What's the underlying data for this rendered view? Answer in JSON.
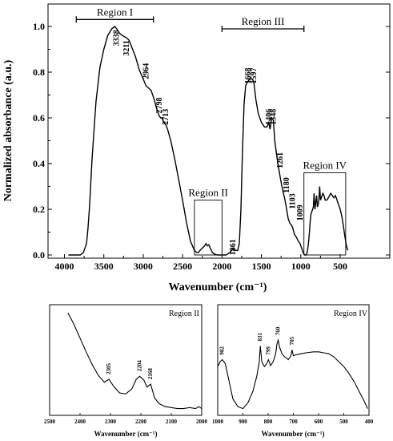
{
  "chart_data": [
    {
      "type": "line",
      "xlabel": "Wavenumber (cm⁻¹)",
      "ylabel": "Normalized absorbance (a.u.)",
      "xlim": [
        4000,
        400
      ],
      "ylim": [
        -0.02,
        1.05
      ],
      "x_reversed": true,
      "x_ticks": [
        4000,
        3500,
        3000,
        2500,
        2000,
        1500,
        1000,
        500
      ],
      "y_ticks": [
        0.0,
        0.2,
        0.4,
        0.6,
        0.8,
        1.0
      ],
      "grid": false,
      "series": [
        {
          "x": [
            3950,
            3850,
            3800,
            3760,
            3720,
            3700,
            3680,
            3650,
            3600,
            3550,
            3500,
            3450,
            3400,
            3360,
            3338,
            3300,
            3260,
            3211,
            3180,
            3100,
            3050,
            3000,
            2964,
            2930,
            2900,
            2860,
            2830,
            2798,
            2780,
            2760,
            2740,
            2713,
            2690,
            2650,
            2600,
            2550,
            2500,
            2450,
            2400,
            2350,
            2320,
            2300,
            2280,
            2250,
            2220,
            2204,
            2185,
            2168,
            2150,
            2120,
            2100,
            2060,
            2000,
            1950,
            1900,
            1880,
            1861,
            1840,
            1800,
            1780,
            1760,
            1740,
            1720,
            1700,
            1690,
            1668,
            1650,
            1620,
            1597,
            1570,
            1540,
            1500,
            1460,
            1430,
            1406,
            1390,
            1370,
            1348,
            1330,
            1300,
            1280,
            1261,
            1240,
            1220,
            1200,
            1180,
            1160,
            1140,
            1120,
            1103,
            1080,
            1060,
            1030,
            1009,
            990,
            970,
            960,
            950,
            940,
            930,
            920,
            910,
            900,
            890,
            880,
            870,
            860,
            850,
            840,
            831,
            820,
            810,
            799,
            790,
            780,
            770,
            760,
            750,
            740,
            720,
            705,
            690,
            670,
            650,
            620,
            600,
            580,
            560,
            540,
            520,
            500,
            480,
            460,
            440,
            420,
            405
          ],
          "y": [
            0.0,
            0.0,
            0.0,
            0.01,
            0.05,
            0.12,
            0.22,
            0.42,
            0.67,
            0.82,
            0.9,
            0.96,
            0.99,
            1.0,
            0.99,
            0.97,
            0.96,
            0.95,
            0.94,
            0.87,
            0.81,
            0.77,
            0.74,
            0.73,
            0.72,
            0.68,
            0.64,
            0.61,
            0.6,
            0.6,
            0.58,
            0.57,
            0.55,
            0.5,
            0.42,
            0.33,
            0.24,
            0.14,
            0.06,
            0.02,
            0.01,
            0.01,
            0.02,
            0.03,
            0.04,
            0.05,
            0.04,
            0.045,
            0.03,
            0.01,
            0.005,
            0.0,
            0.0,
            0.0,
            0.01,
            0.02,
            0.03,
            0.02,
            0.02,
            0.05,
            0.2,
            0.45,
            0.66,
            0.74,
            0.75,
            0.76,
            0.77,
            0.77,
            0.76,
            0.68,
            0.62,
            0.58,
            0.56,
            0.56,
            0.58,
            0.55,
            0.6,
            0.59,
            0.5,
            0.42,
            0.38,
            0.34,
            0.3,
            0.27,
            0.24,
            0.2,
            0.16,
            0.14,
            0.13,
            0.12,
            0.09,
            0.08,
            0.06,
            0.05,
            0.03,
            0.01,
            0.005,
            0.0,
            0.0,
            0.0,
            0.01,
            0.03,
            0.06,
            0.1,
            0.15,
            0.18,
            0.19,
            0.2,
            0.21,
            0.27,
            0.2,
            0.23,
            0.26,
            0.21,
            0.22,
            0.24,
            0.3,
            0.24,
            0.25,
            0.27,
            0.26,
            0.24,
            0.24,
            0.25,
            0.27,
            0.26,
            0.25,
            0.26,
            0.24,
            0.22,
            0.2,
            0.17,
            0.13,
            0.08,
            0.04,
            0.02
          ]
        }
      ],
      "annotations": [
        {
          "x": 3338,
          "y": 0.995,
          "text": "3338"
        },
        {
          "x": 3211,
          "y": 0.95,
          "text": "3211"
        },
        {
          "x": 2964,
          "y": 0.85,
          "text": "2964"
        },
        {
          "x": 2798,
          "y": 0.7,
          "text": "2798"
        },
        {
          "x": 2713,
          "y": 0.65,
          "text": "2713"
        },
        {
          "x": 1861,
          "y": 0.08,
          "text": "1861"
        },
        {
          "x": 1668,
          "y": 0.83,
          "text": "1668"
        },
        {
          "x": 1597,
          "y": 0.83,
          "text": "1597"
        },
        {
          "x": 1406,
          "y": 0.65,
          "text": "1406"
        },
        {
          "x": 1348,
          "y": 0.65,
          "text": "1348"
        },
        {
          "x": 1261,
          "y": 0.46,
          "text": "1261"
        },
        {
          "x": 1180,
          "y": 0.35,
          "text": "1180"
        },
        {
          "x": 1103,
          "y": 0.28,
          "text": "1103"
        },
        {
          "x": 1009,
          "y": 0.23,
          "text": "1009"
        }
      ],
      "regions": [
        {
          "label": "Region I",
          "x_from": 3850,
          "x_to": 2870,
          "y": 1.02,
          "type": "bracket"
        },
        {
          "label": "Region III",
          "x_from": 2000,
          "x_to": 960,
          "y": 1.0,
          "type": "bracket"
        },
        {
          "label": "Region II",
          "x_from": 2350,
          "x_to": 2000,
          "y_from": 0.0,
          "y_to": 0.24,
          "type": "box"
        },
        {
          "label": "Region IV",
          "x_from": 960,
          "x_to": 430,
          "y_from": 0.0,
          "y_to": 0.36,
          "type": "box"
        }
      ]
    },
    {
      "type": "line",
      "title": "Region II",
      "xlabel": "Wavenumber (cm⁻¹)",
      "xlim": [
        2500,
        2000
      ],
      "x_reversed": true,
      "x_ticks": [
        2500,
        2400,
        2300,
        2200,
        2100,
        2000
      ],
      "series": [
        {
          "x": [
            2440,
            2420,
            2400,
            2380,
            2360,
            2340,
            2320,
            2305,
            2290,
            2270,
            2250,
            2230,
            2215,
            2204,
            2190,
            2180,
            2168,
            2155,
            2140,
            2120,
            2100,
            2080,
            2060,
            2040,
            2020,
            2010,
            2000
          ],
          "y": [
            1.0,
            0.88,
            0.74,
            0.6,
            0.47,
            0.36,
            0.29,
            0.32,
            0.25,
            0.18,
            0.17,
            0.22,
            0.32,
            0.35,
            0.31,
            0.24,
            0.27,
            0.13,
            0.07,
            0.04,
            0.03,
            0.02,
            0.02,
            0.03,
            0.02,
            0.04,
            0.02
          ]
        }
      ],
      "annotations": [
        {
          "x": 2305,
          "text": "2305"
        },
        {
          "x": 2204,
          "text": "2204"
        },
        {
          "x": 2168,
          "text": "2168"
        }
      ]
    },
    {
      "type": "line",
      "title": "Region IV",
      "xlabel": "Wavenumber (cm⁻¹)",
      "xlim": [
        1000,
        400
      ],
      "x_reversed": true,
      "x_ticks": [
        1000,
        900,
        800,
        700,
        600,
        500,
        400
      ],
      "series": [
        {
          "x": [
            1000,
            990,
            982,
            970,
            955,
            940,
            920,
            900,
            880,
            860,
            845,
            835,
            831,
            825,
            815,
            805,
            799,
            790,
            780,
            770,
            765,
            760,
            755,
            745,
            735,
            720,
            710,
            705,
            700,
            690,
            670,
            650,
            620,
            600,
            580,
            560,
            540,
            520,
            500,
            480,
            460,
            440,
            420,
            405
          ],
          "y": [
            0.45,
            0.5,
            0.52,
            0.48,
            0.3,
            0.12,
            0.04,
            0.02,
            0.08,
            0.2,
            0.35,
            0.5,
            0.66,
            0.5,
            0.45,
            0.48,
            0.52,
            0.46,
            0.5,
            0.58,
            0.68,
            0.72,
            0.65,
            0.58,
            0.55,
            0.52,
            0.56,
            0.62,
            0.56,
            0.57,
            0.58,
            0.59,
            0.6,
            0.6,
            0.59,
            0.58,
            0.55,
            0.5,
            0.45,
            0.38,
            0.3,
            0.2,
            0.1,
            0.02
          ]
        }
      ],
      "annotations": [
        {
          "x": 982,
          "text": "982"
        },
        {
          "x": 831,
          "text": "831"
        },
        {
          "x": 799,
          "text": "799"
        },
        {
          "x": 760,
          "text": "760"
        },
        {
          "x": 705,
          "text": "705"
        }
      ]
    }
  ]
}
